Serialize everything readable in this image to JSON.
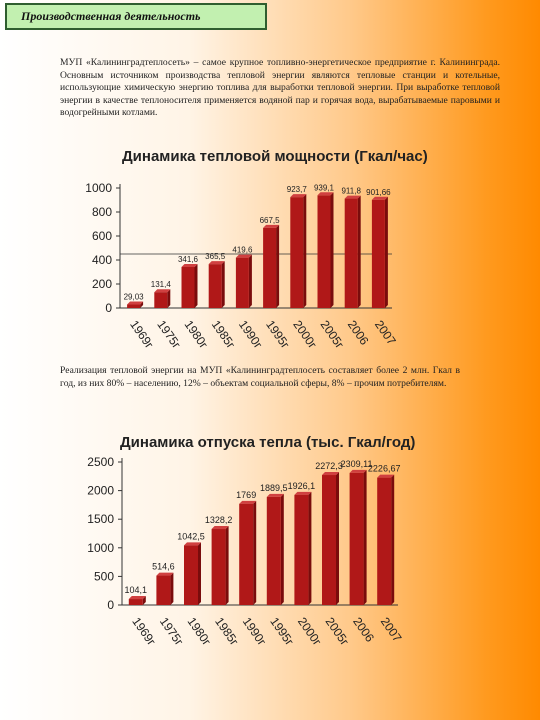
{
  "header": {
    "title": "Производственная деятельность"
  },
  "paragraphs": {
    "p1": "МУП «Калининградтеплосеть» – самое крупное топливно-энергетическое предприятие г. Калининграда. Основным источником производства тепловой энергии являются тепловые станции и котельные, использующие химическую энергию топлива для выработки тепловой энергии. При выработке тепловой энергии в качестве теплоносителя применяется водяной пар и горячая вода, вырабатываемые паровыми и водогрейными котлами.",
    "p2": "Реализация тепловой энергии на МУП «Калининградтеплосеть составляет более 2 млн. Гкал в год, из них 80% – населению, 12% – объектам социальной сферы, 8% – прочим потребителям."
  },
  "colors": {
    "bar": "#b01818",
    "bar_side": "#7a0c0c",
    "bar_top": "#d04040",
    "axis": "#333333",
    "header_bg": "#c2f0b0",
    "header_border": "#2f5e2f"
  },
  "chart_data": [
    {
      "type": "bar",
      "title": "Динамика тепловой мощности (Гкал/час)",
      "categories": [
        "1969г",
        "1975г",
        "1980г",
        "1985г",
        "1990г",
        "1995г",
        "2000г",
        "2005г",
        "2006",
        "2007"
      ],
      "values": [
        29.03,
        131.4,
        341.6,
        365.5,
        419.6,
        667.5,
        923.7,
        939.1,
        911.8,
        901.66
      ],
      "data_labels": [
        "29,03",
        "131,4",
        "341,6",
        "365,5",
        "419,6",
        "667,5",
        "923,7",
        "939,1",
        "911,8",
        "901,66"
      ],
      "yticks": [
        "0",
        "200",
        "400",
        "600",
        "800",
        "1000"
      ],
      "ylim": [
        0,
        1000
      ],
      "reference_line": 450,
      "grid": false,
      "legend": "none"
    },
    {
      "type": "bar",
      "title": "Динамика отпуска тепла (тыс. Гкал/год)",
      "categories": [
        "1969г",
        "1975г",
        "1980г",
        "1985г",
        "1990г",
        "1995г",
        "2000г",
        "2005г",
        "2006",
        "2007"
      ],
      "values": [
        104.1,
        514.6,
        1042.5,
        1328.2,
        1769,
        1889.5,
        1926.1,
        2272.3,
        2309.11,
        2226.67
      ],
      "data_labels": [
        "104,1",
        "514,6",
        "1042,5",
        "1328,2",
        "1769",
        "1889,5",
        "1926,1",
        "2272,3",
        "2309,11",
        "2226,67"
      ],
      "yticks": [
        "0",
        "500",
        "1000",
        "1500",
        "2000",
        "2500"
      ],
      "ylim": [
        0,
        2500
      ],
      "grid": false,
      "legend": "none"
    }
  ]
}
